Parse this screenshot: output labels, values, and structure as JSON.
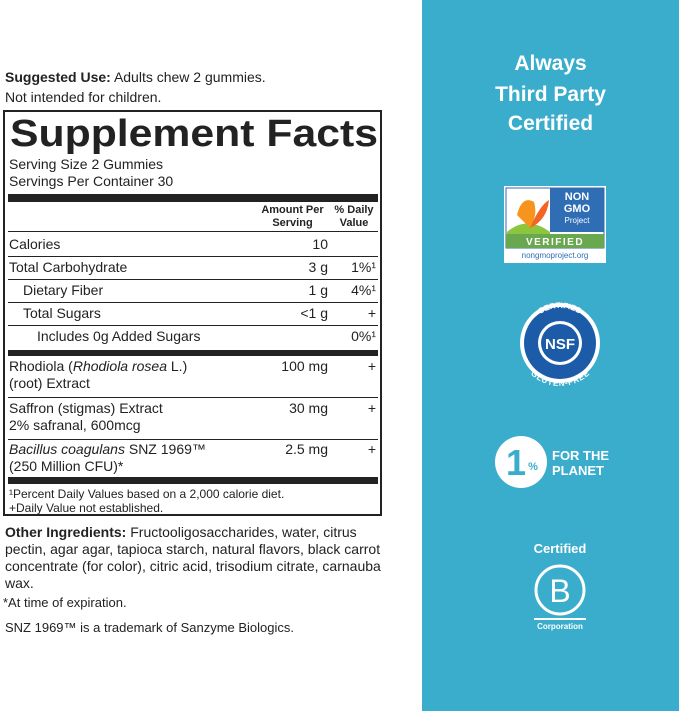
{
  "suggested_use": {
    "label": "Suggested Use:",
    "text": "Adults chew 2 gummies.",
    "note": "Not intended for children."
  },
  "supplement_facts": {
    "title": "Supplement Facts",
    "serving_size": "Serving Size 2 Gummies",
    "servings_per_container": "Servings Per Container 30",
    "header": {
      "amount": "Amount Per Serving",
      "daily_value": "% Daily Value"
    },
    "rows": [
      {
        "name": "Calories",
        "amount": "10"
      },
      {
        "name": "Total Carbohydrate",
        "amount": "3 g",
        "dv": "1%¹"
      },
      {
        "name": "Dietary Fiber",
        "amount": "1 g",
        "dv": "4%¹"
      },
      {
        "name": "Total Sugars",
        "amount": "<1 g",
        "dv": "+"
      },
      {
        "name": "Includes 0g Added Sugars",
        "dv": "0%¹"
      }
    ],
    "ingredients": [
      {
        "name": [
          "Rhodiola (",
          "Rhodiola rosea",
          " L.)"
        ],
        "detail": "(root) Extract",
        "amount": "100 mg",
        "dv": "+"
      },
      {
        "name": [
          "Saffron (stigmas) Extract"
        ],
        "detail": "2% safranal, 600mcg",
        "amount": "30 mg",
        "dv": "+"
      },
      {
        "name": [
          "Bacillus coagulans",
          " SNZ 1969™"
        ],
        "detail": "(250 Million CFU)*",
        "amount": "2.5 mg",
        "dv": "+"
      }
    ],
    "footnotes": [
      "¹Percent Daily Values based on a 2,000 calorie diet.",
      "+Daily Value not established."
    ]
  },
  "other_ingredients": {
    "label": "Other Ingredients:",
    "text": "Fructooligosaccharides, water, citrus pectin, agar agar, tapioca starch, natural flavors, black carrot concentrate (for color), citric acid, trisodium citrate, carnauba wax."
  },
  "notes": [
    "*At time of expiration.",
    "SNZ 1969™ is a trademark of Sanzyme Biologics."
  ],
  "certifications": {
    "heading": [
      "Always",
      "Third Party",
      "Certified"
    ],
    "non_gmo": {
      "lines": [
        "NON",
        "GMO",
        "Project"
      ],
      "verified": "VERIFIED",
      "url": "nongmoproject.org"
    },
    "nsf": {
      "top": "CERTIFIED",
      "center": "NSF",
      "bottom": "GLUTEN-FREE"
    },
    "one_percent": {
      "number": "1",
      "percent": "%",
      "lines": [
        "FOR THE",
        "PLANET"
      ]
    },
    "b_corp": {
      "top": "Certified",
      "letter": "B",
      "bottom": "Corporation"
    }
  }
}
